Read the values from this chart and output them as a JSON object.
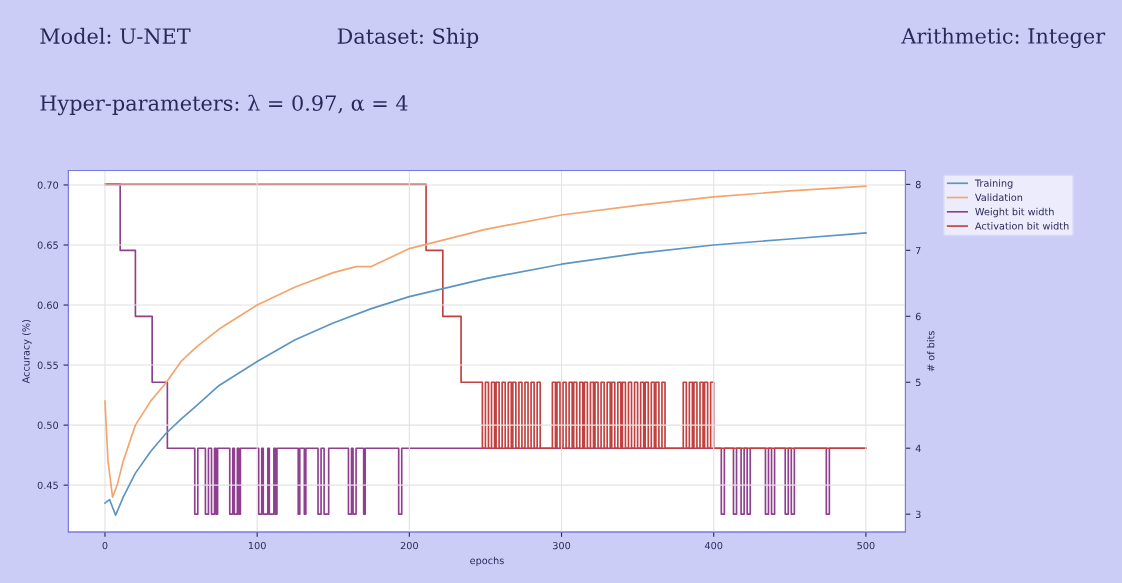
{
  "chart_data": {
    "type": "line",
    "annotations": [
      "Model: U-NET",
      "Dataset: Ship",
      "Arithmetic: Integer",
      "Hyper-parameters: λ = 0.97, α = 4"
    ],
    "xlabel": "epochs",
    "ylabel": "Accuracy (%)",
    "y2label": "# of bits",
    "xlim": [
      -24,
      526
    ],
    "xticks": [
      0,
      100,
      200,
      300,
      400,
      500
    ],
    "ylim": [
      0.411,
      0.712
    ],
    "yticks": [
      {
        "value": 0.45,
        "label": "0.45"
      },
      {
        "value": 0.5,
        "label": "0.50"
      },
      {
        "value": 0.55,
        "label": "0.55"
      },
      {
        "value": 0.6,
        "label": "0.60"
      },
      {
        "value": 0.65,
        "label": "0.65"
      },
      {
        "value": 0.7,
        "label": "0.70"
      }
    ],
    "y2lim": [
      2.73,
      8.21
    ],
    "y2ticks": [
      3,
      4,
      5,
      6,
      7,
      8
    ],
    "grid": true,
    "legend": "top right",
    "series": [
      {
        "name": "Training",
        "color": "#5b95c4",
        "x": [
          0,
          3,
          7,
          12,
          20,
          30,
          40,
          50,
          60,
          75,
          100,
          125,
          150,
          175,
          200,
          250,
          300,
          350,
          400,
          450,
          500
        ],
        "values": [
          0.435,
          0.438,
          0.425,
          0.44,
          0.46,
          0.478,
          0.493,
          0.505,
          0.516,
          0.533,
          0.553,
          0.571,
          0.585,
          0.597,
          0.607,
          0.622,
          0.634,
          0.643,
          0.65,
          0.655,
          0.66
        ]
      },
      {
        "name": "Validation",
        "color": "#f3a56d",
        "x": [
          0,
          2,
          5,
          8,
          12,
          20,
          30,
          40,
          50,
          60,
          75,
          100,
          125,
          150,
          165,
          175,
          200,
          250,
          300,
          350,
          400,
          450,
          500
        ],
        "values": [
          0.52,
          0.47,
          0.44,
          0.45,
          0.47,
          0.5,
          0.52,
          0.535,
          0.553,
          0.565,
          0.58,
          0.6,
          0.615,
          0.627,
          0.632,
          0.632,
          0.647,
          0.663,
          0.675,
          0.683,
          0.69,
          0.695,
          0.699
        ]
      },
      {
        "name": "Weight bit width",
        "type": "step",
        "axis": "y2",
        "color": "#8e3f8e",
        "x": [
          0,
          10,
          20,
          31,
          41,
          59,
          61,
          66,
          68,
          70,
          72,
          73,
          74,
          82,
          84,
          85,
          87,
          88,
          89,
          101,
          103,
          104,
          107,
          108,
          111,
          112,
          113,
          127,
          128,
          131,
          132,
          140,
          142,
          144,
          147,
          160,
          162,
          163,
          165,
          170,
          171,
          193,
          195,
          405,
          407,
          413,
          415,
          418,
          420,
          422,
          424,
          434,
          436,
          438,
          440,
          447,
          449,
          451,
          453,
          474,
          476,
          500
        ],
        "values": [
          8,
          7,
          6,
          5,
          4,
          3,
          4,
          3,
          4,
          3,
          4,
          3,
          4,
          3,
          4,
          3,
          4,
          3,
          4,
          3,
          4,
          3,
          4,
          3,
          4,
          3,
          4,
          3,
          4,
          3,
          4,
          3,
          4,
          3,
          4,
          3,
          4,
          3,
          4,
          3,
          4,
          3,
          4,
          3,
          4,
          3,
          4,
          3,
          4,
          3,
          4,
          3,
          4,
          3,
          4,
          3,
          4,
          3,
          4,
          3,
          4,
          4
        ]
      },
      {
        "name": "Activation bit width",
        "type": "step",
        "axis": "y2",
        "color": "#c2403f",
        "x": [
          0,
          211,
          222,
          234,
          246,
          248,
          250,
          252,
          254,
          256,
          257,
          259,
          261,
          263,
          265,
          267,
          268,
          270,
          272,
          274,
          276,
          278,
          280,
          282,
          284,
          286,
          294,
          296,
          297,
          299,
          301,
          303,
          305,
          307,
          308,
          310,
          312,
          314,
          315,
          317,
          319,
          321,
          322,
          324,
          326,
          328,
          330,
          332,
          333,
          335,
          337,
          339,
          340,
          342,
          344,
          346,
          348,
          350,
          352,
          354,
          355,
          357,
          359,
          361,
          362,
          364,
          366,
          368,
          380,
          382,
          384,
          386,
          387,
          389,
          391,
          393,
          394,
          396,
          398,
          400,
          500
        ],
        "values": [
          8,
          7,
          6,
          5,
          5,
          4,
          5,
          4,
          5,
          4,
          5,
          4,
          5,
          4,
          5,
          4,
          5,
          4,
          5,
          4,
          5,
          4,
          5,
          4,
          5,
          4,
          5,
          4,
          5,
          4,
          5,
          4,
          5,
          4,
          5,
          4,
          5,
          4,
          5,
          4,
          5,
          4,
          5,
          4,
          5,
          4,
          5,
          4,
          5,
          4,
          5,
          4,
          5,
          4,
          5,
          4,
          5,
          4,
          5,
          4,
          5,
          4,
          5,
          4,
          5,
          4,
          5,
          4,
          5,
          4,
          5,
          4,
          5,
          4,
          5,
          4,
          5,
          4,
          5,
          4,
          4
        ]
      }
    ]
  }
}
